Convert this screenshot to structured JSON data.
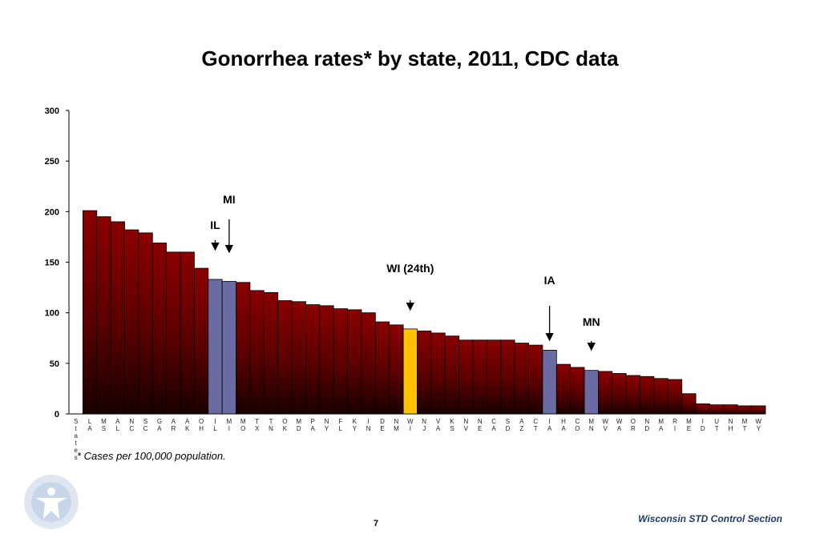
{
  "chart_data": {
    "type": "bar",
    "title": "Gonorrhea rates* by state, 2011, CDC data",
    "ylim": [
      0,
      300
    ],
    "yticks": [
      0,
      50,
      100,
      150,
      200,
      250,
      300
    ],
    "grid": false,
    "categories": [
      "States",
      "LA",
      "MS",
      "AL",
      "NC",
      "SC",
      "GA",
      "AR",
      "AK",
      "OH",
      "IL",
      "MI",
      "MO",
      "TX",
      "TN",
      "OK",
      "MD",
      "PA",
      "NY",
      "FL",
      "KY",
      "IN",
      "DE",
      "NM",
      "WI",
      "NJ",
      "VA",
      "KS",
      "NV",
      "NE",
      "CA",
      "SD",
      "AZ",
      "CT",
      "IA",
      "HA",
      "CO",
      "MN",
      "WV",
      "WA",
      "OR",
      "ND",
      "MA",
      "RI",
      "ME",
      "ID",
      "UT",
      "NH",
      "MT",
      "WY"
    ],
    "values": [
      null,
      201,
      195,
      190,
      182,
      179,
      169,
      160,
      160,
      144,
      133,
      131,
      130,
      122,
      120,
      112,
      111,
      108,
      107,
      104,
      103,
      100,
      91,
      88,
      84,
      82,
      80,
      77,
      73,
      73,
      73,
      73,
      70,
      68,
      63,
      49,
      46,
      43,
      42,
      40,
      38,
      37,
      35,
      34,
      20,
      10,
      9,
      9,
      8,
      8
    ],
    "highlight": {
      "IL": "#6b6ba3",
      "MI": "#6b6ba3",
      "IA": "#6b6ba3",
      "MN": "#6b6ba3",
      "WI": "#ffc000"
    },
    "bar_color_top": "#8b0000",
    "bar_color_bottom": "#1a0000",
    "annotations": [
      {
        "label": "MI",
        "category": "MI",
        "arrow": true
      },
      {
        "label": "IL",
        "category": "IL",
        "arrow": true
      },
      {
        "label": "WI (24th)",
        "category": "WI",
        "arrow": true
      },
      {
        "label": "IA",
        "category": "IA",
        "arrow": true
      },
      {
        "label": "MN",
        "category": "MN",
        "arrow": true
      }
    ]
  },
  "footnote": "* Cases per 100,000 population.",
  "footer_org": "Wisconsin STD Control Section",
  "page_number": "7",
  "logo_icon": "health-department-seal"
}
